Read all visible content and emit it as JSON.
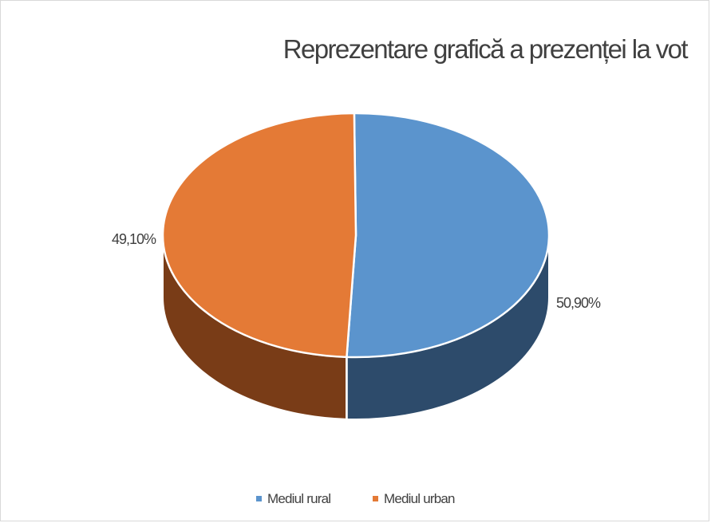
{
  "chart_data": {
    "type": "pie",
    "title": "Reprezentare grafică a prezenței la vot",
    "three_d": true,
    "legend_position": "bottom",
    "categories": [
      "Mediul rural",
      "Mediul urban"
    ],
    "values": [
      50.9,
      49.1
    ],
    "data_labels": [
      "50,90%",
      "49,10%"
    ],
    "colors": [
      "#5b94cd",
      "#e47a36"
    ],
    "side_colors": [
      "#2d4b6b",
      "#793c17"
    ]
  }
}
